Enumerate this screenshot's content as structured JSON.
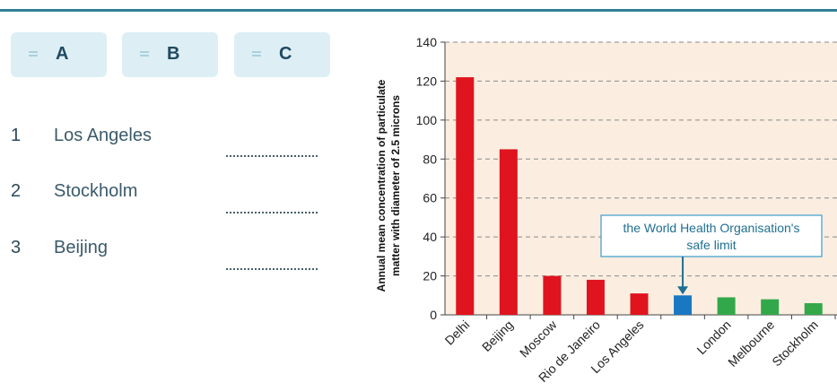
{
  "choices": [
    {
      "label": "A"
    },
    {
      "label": "B"
    },
    {
      "label": "C"
    }
  ],
  "items": [
    {
      "number": "1",
      "name": "Los Angeles"
    },
    {
      "number": "2",
      "name": "Stockholm"
    },
    {
      "number": "3",
      "name": "Beijing"
    }
  ],
  "chart_data": {
    "type": "bar",
    "ylabel_line1": "Annual mean concentration of particulate",
    "ylabel_line2": "matter with diameter of 2.5 microns",
    "ylim": [
      0,
      140
    ],
    "yticks": [
      0,
      20,
      40,
      60,
      80,
      100,
      120,
      140
    ],
    "grid": true,
    "categories": [
      "Delhi",
      "Beijing",
      "Moscow",
      "Rio de Janeiro",
      "Los Angeles",
      "",
      "London",
      "Melbourne",
      "Stockholm"
    ],
    "values": [
      122,
      85,
      20,
      18,
      11,
      10,
      9,
      8,
      6
    ],
    "bar_colors": [
      "#e0141e",
      "#e0141e",
      "#e0141e",
      "#e0141e",
      "#e0141e",
      "#1a78c2",
      "#33a84a",
      "#33a84a",
      "#33a84a"
    ],
    "annotation": {
      "line1": "the World Health Organisation's",
      "line2": "safe limit"
    },
    "colors": {
      "background": "#fbeee0",
      "grid": "#8a8a8a",
      "callout": "#1f6f92"
    }
  }
}
